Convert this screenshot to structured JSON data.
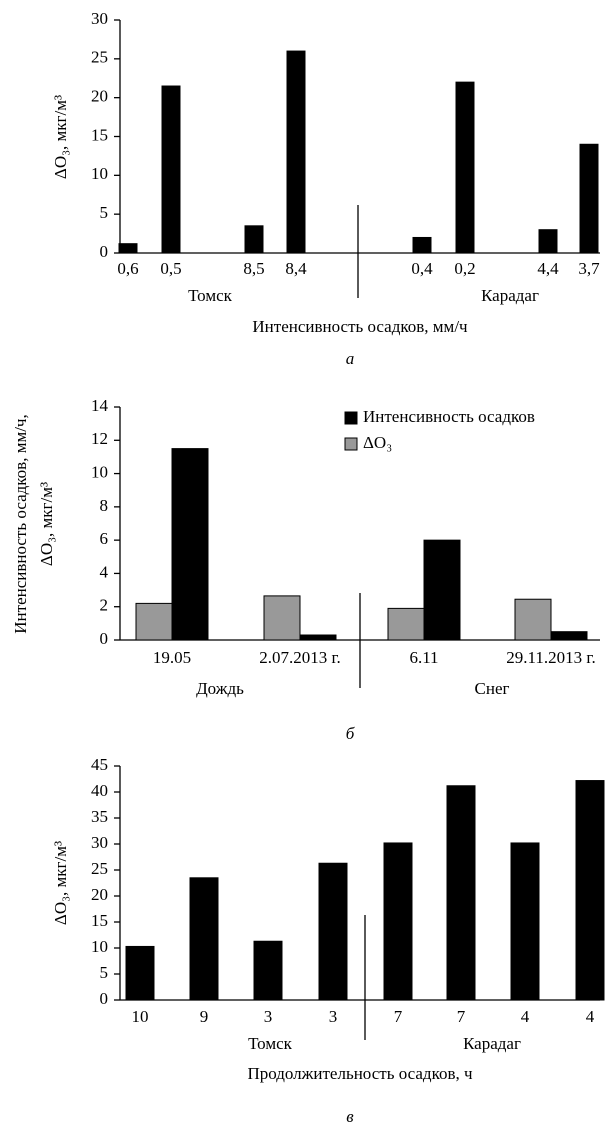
{
  "chart_data": [
    {
      "type": "bar",
      "ylabel": "ΔO₃, мкг/м³",
      "xlabel": "Интенсивность осадков, мм/ч",
      "panel_label": "а",
      "categories": [
        "0,6",
        "0,5",
        "8,5",
        "8,4",
        "0,4",
        "0,2",
        "4,4",
        "3,7"
      ],
      "groups": [
        "Томск",
        "Карадаг"
      ],
      "values": [
        1.2,
        21.5,
        3.5,
        26,
        2,
        22,
        3,
        14
      ],
      "color": "#000000",
      "ylim": [
        0,
        30
      ],
      "yticks": [
        0,
        5,
        10,
        15,
        20,
        25,
        30
      ]
    },
    {
      "type": "grouped_bar",
      "ylabel": [
        "Интенсивность осадков, мм/ч,",
        "ΔO₃, мкг/м³"
      ],
      "panel_label": "б",
      "categories": [
        "19.05",
        "2.07.2013 г.",
        "6.11",
        "29.11.2013 г."
      ],
      "groups": [
        "Дождь",
        "Снег"
      ],
      "series": [
        {
          "name": "Интенсивность осадков",
          "color": "#000000",
          "values": [
            11.5,
            0.3,
            6.0,
            0.5
          ]
        },
        {
          "name": "ΔO₃",
          "color": "#999999",
          "values": [
            2.2,
            2.65,
            1.9,
            2.45
          ]
        }
      ],
      "legend": "upper right",
      "ylim": [
        0,
        14
      ],
      "yticks": [
        0,
        2,
        4,
        6,
        8,
        10,
        12,
        14
      ]
    },
    {
      "type": "bar",
      "ylabel": "ΔO₃, мкг/м³",
      "xlabel": "Продолжительность осадков, ч",
      "panel_label": "в",
      "categories": [
        "10",
        "9",
        "3",
        "3",
        "7",
        "7",
        "4",
        "4"
      ],
      "groups": [
        "Томск",
        "Карадаг"
      ],
      "values": [
        10.3,
        23.5,
        11.3,
        26.3,
        30.2,
        41.2,
        30.2,
        42.2
      ],
      "color": "#000000",
      "ylim": [
        0,
        45
      ],
      "yticks": [
        0,
        5,
        10,
        15,
        20,
        25,
        30,
        35,
        40,
        45
      ]
    }
  ]
}
